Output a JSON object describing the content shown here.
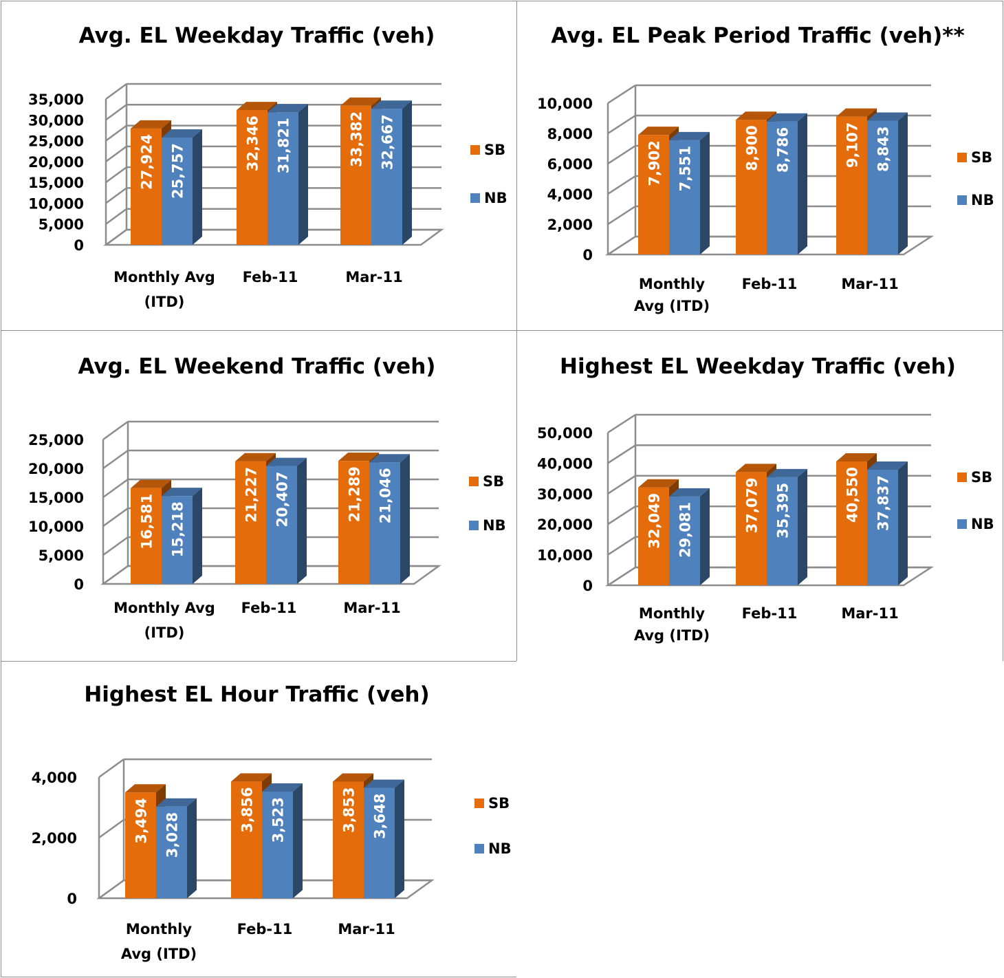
{
  "colors": {
    "sb": "#e46c0a",
    "nb": "#4f81bd",
    "grid": "#8c8c8c",
    "text": "#000000",
    "label": "#ffffff"
  },
  "chart_data": [
    {
      "type": "bar",
      "title": "Avg. EL Weekday Traffic (veh)",
      "categories": [
        [
          "Monthly Avg",
          "(ITD)"
        ],
        [
          "Feb-11"
        ],
        [
          "Mar-11"
        ]
      ],
      "ylim": [
        0,
        35000
      ],
      "yticks": [
        "0",
        "5,000",
        "10,000",
        "15,000",
        "20,000",
        "25,000",
        "30,000",
        "35,000"
      ],
      "legend_position": "right",
      "series": [
        {
          "name": "SB",
          "values": [
            27924,
            32346,
            33382
          ],
          "labels": [
            "27,924",
            "32,346",
            "33,382"
          ]
        },
        {
          "name": "NB",
          "values": [
            25757,
            31821,
            32667
          ],
          "labels": [
            "25,757",
            "31,821",
            "32,667"
          ]
        }
      ]
    },
    {
      "type": "bar",
      "title": "Avg. EL Peak Period Traffic (veh)**",
      "categories": [
        [
          "Monthly",
          "Avg (ITD)"
        ],
        [
          "Feb-11"
        ],
        [
          "Mar-11"
        ]
      ],
      "ylim": [
        0,
        10000
      ],
      "yticks": [
        "0",
        "2,000",
        "4,000",
        "6,000",
        "8,000",
        "10,000"
      ],
      "legend_position": "right",
      "series": [
        {
          "name": "SB",
          "values": [
            7902,
            8900,
            9107
          ],
          "labels": [
            "7,902",
            "8,900",
            "9,107"
          ]
        },
        {
          "name": "NB",
          "values": [
            7551,
            8786,
            8843
          ],
          "labels": [
            "7,551",
            "8,786",
            "8,843"
          ]
        }
      ]
    },
    {
      "type": "bar",
      "title": "Avg. EL Weekend Traffic (veh)",
      "categories": [
        [
          "Monthly Avg",
          "(ITD)"
        ],
        [
          "Feb-11"
        ],
        [
          "Mar-11"
        ]
      ],
      "ylim": [
        0,
        25000
      ],
      "yticks": [
        "0",
        "5,000",
        "10,000",
        "15,000",
        "20,000",
        "25,000"
      ],
      "legend_position": "right",
      "series": [
        {
          "name": "SB",
          "values": [
            16581,
            21227,
            21289
          ],
          "labels": [
            "16,581",
            "21,227",
            "21,289"
          ]
        },
        {
          "name": "NB",
          "values": [
            15218,
            20407,
            21046
          ],
          "labels": [
            "15,218",
            "20,407",
            "21,046"
          ]
        }
      ]
    },
    {
      "type": "bar",
      "title": "Highest EL Weekday Traffic (veh)",
      "categories": [
        [
          "Monthly",
          "Avg (ITD)"
        ],
        [
          "Feb-11"
        ],
        [
          "Mar-11"
        ]
      ],
      "ylim": [
        0,
        50000
      ],
      "yticks": [
        "0",
        "10,000",
        "20,000",
        "30,000",
        "40,000",
        "50,000"
      ],
      "legend_position": "right",
      "series": [
        {
          "name": "SB",
          "values": [
            32049,
            37079,
            40550
          ],
          "labels": [
            "32,049",
            "37,079",
            "40,550"
          ]
        },
        {
          "name": "NB",
          "values": [
            29081,
            35395,
            37837
          ],
          "labels": [
            "29,081",
            "35,395",
            "37,837"
          ]
        }
      ]
    },
    {
      "type": "bar",
      "title": "Highest EL Hour Traffic (veh)",
      "categories": [
        [
          "Monthly",
          "Avg (ITD)"
        ],
        [
          "Feb-11"
        ],
        [
          "Mar-11"
        ]
      ],
      "ylim": [
        0,
        4000
      ],
      "yticks": [
        "0",
        "2,000",
        "4,000"
      ],
      "legend_position": "right",
      "series": [
        {
          "name": "SB",
          "values": [
            3494,
            3856,
            3853
          ],
          "labels": [
            "3,494",
            "3,856",
            "3,853"
          ]
        },
        {
          "name": "NB",
          "values": [
            3028,
            3523,
            3648
          ],
          "labels": [
            "3,028",
            "3,523",
            "3,648"
          ]
        }
      ]
    }
  ]
}
